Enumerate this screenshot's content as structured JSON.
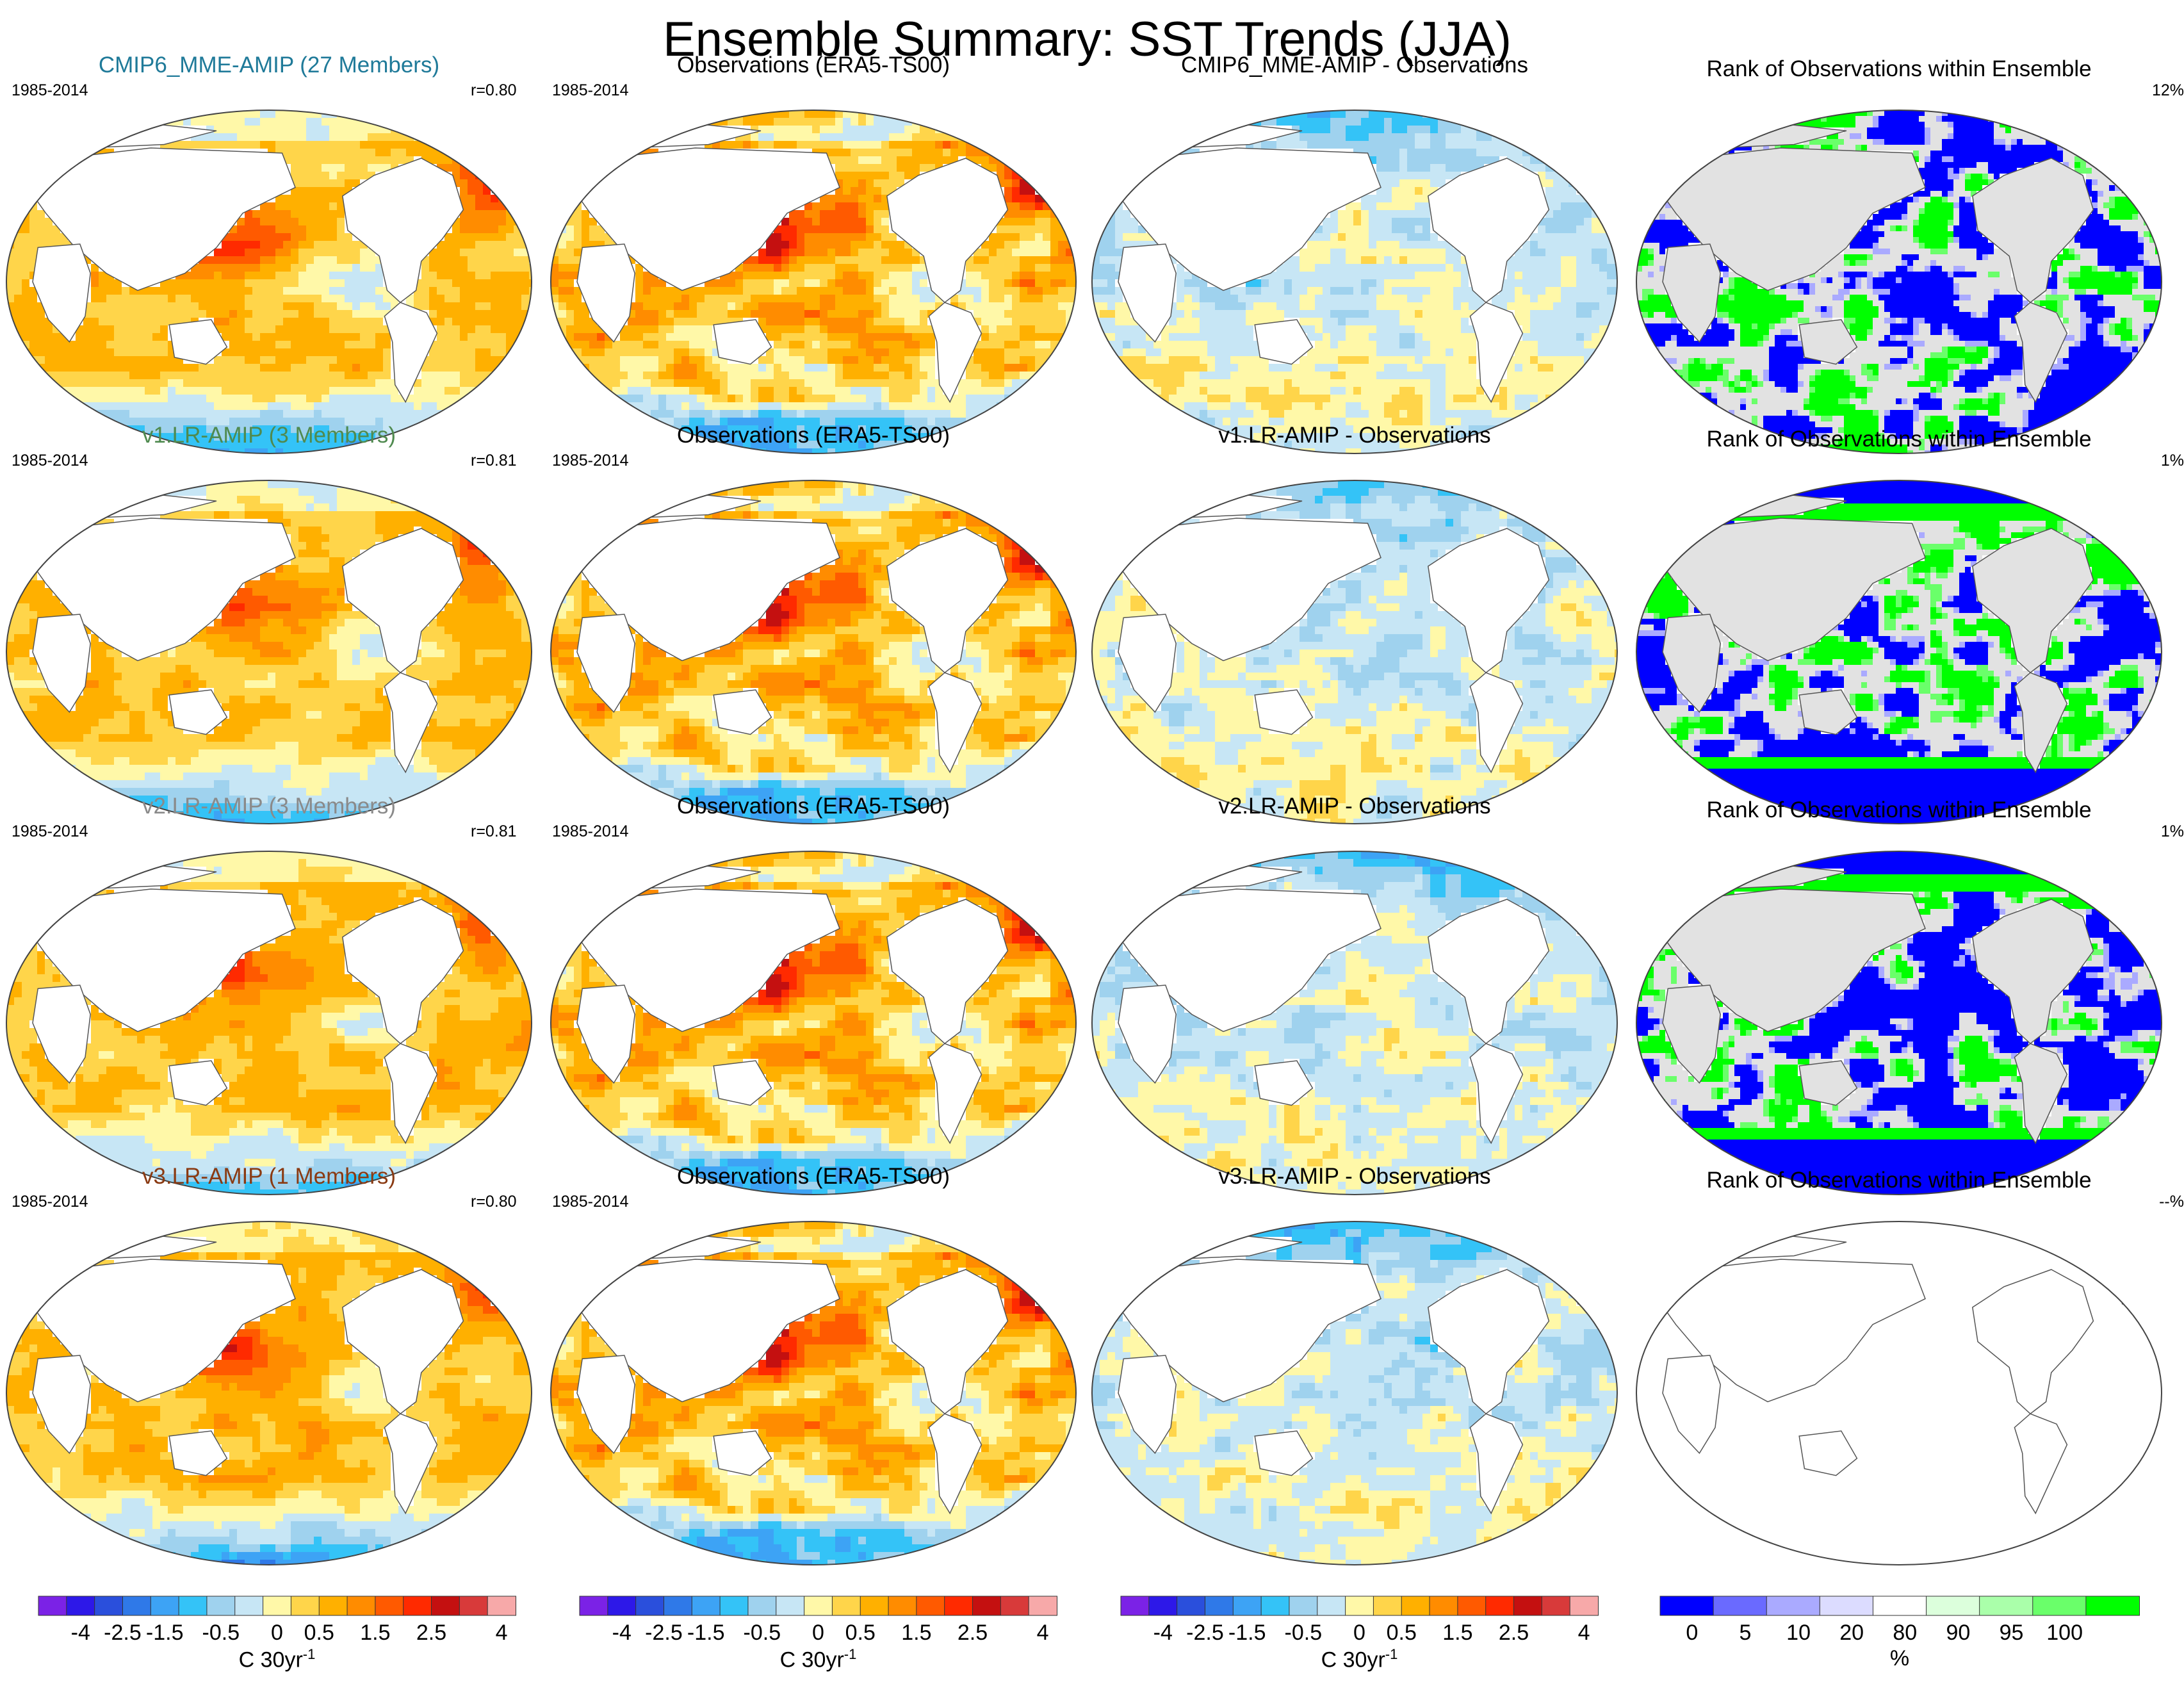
{
  "title": "Ensemble Summary: SST Trends (JJA)",
  "period": "1985-2014",
  "obs_title": "Observations (ERA5-TS00)",
  "rank_title": "Rank of Observations within Ensemble",
  "rows": [
    {
      "model_title": "CMIP6_MME-AMIP (27 Members)",
      "model_color": "#1f7a99",
      "corr": "r=0.80",
      "diff_title": "CMIP6_MME-AMIP - Observations",
      "rank_pct": "12%",
      "rank_available": true
    },
    {
      "model_title": "v1.LR-AMIP (3 Members)",
      "model_color": "#4f8a4f",
      "corr": "r=0.81",
      "diff_title": "v1.LR-AMIP - Observations",
      "rank_pct": "1%",
      "rank_available": true
    },
    {
      "model_title": "v2.LR-AMIP (3 Members)",
      "model_color": "#8a8a8a",
      "corr": "r=0.81",
      "diff_title": "v2.LR-AMIP - Observations",
      "rank_pct": "1%",
      "rank_available": true
    },
    {
      "model_title": "v3.LR-AMIP (1 Members)",
      "model_color": "#8a3a12",
      "corr": "r=0.80",
      "diff_title": "v3.LR-AMIP - Observations",
      "rank_pct": "--%",
      "rank_available": false
    }
  ],
  "colorbars": {
    "trend": {
      "colors": [
        "#7b22e6",
        "#2d18e8",
        "#2a4fdc",
        "#2f79e8",
        "#3da3f5",
        "#34c3f7",
        "#9fd2ee",
        "#c7e6f5",
        "#fff8a8",
        "#ffd54a",
        "#ffb000",
        "#ff8c00",
        "#ff5a00",
        "#ff2a00",
        "#c41010",
        "#d83a3a",
        "#f7a9a9"
      ],
      "ticks": [
        "-4",
        "-2.5",
        "-1.5",
        "-0.5",
        "0",
        "0.5",
        "1.5",
        "2.5",
        "4"
      ],
      "unit": "C 30yr",
      "unit_exp": "-1"
    },
    "rank": {
      "colors": [
        "#0000ff",
        "#6a6aff",
        "#aaaaff",
        "#dcdcff",
        "#ffffff",
        "#dcffdc",
        "#aaffaa",
        "#6aff6a",
        "#00ff00"
      ],
      "ticks": [
        "0",
        "5",
        "10",
        "20",
        "80",
        "90",
        "95",
        "100"
      ],
      "unit": "%"
    }
  },
  "chart_data": [
    {
      "type": "map-panels",
      "title": "Ensemble Summary: SST Trends (JJA)",
      "layout": "4 rows x 4 columns (model trend, observations trend, model minus observations, rank of observations)",
      "period": "1985-2014",
      "trend_levels": [
        -4,
        -3.5,
        -3,
        -2.5,
        -2,
        -1.5,
        -1,
        -0.5,
        0,
        0.5,
        1,
        1.5,
        2,
        2.5,
        3,
        3.5,
        4
      ],
      "trend_units": "C 30yr-1",
      "rank_levels": [
        0,
        5,
        10,
        20,
        80,
        90,
        95,
        100
      ],
      "rank_units": "%",
      "rows": [
        {
          "model": "CMIP6_MME-AMIP",
          "members": 27,
          "pattern_correlation": 0.8,
          "rank_pct_outside": 12
        },
        {
          "model": "v1.LR-AMIP",
          "members": 3,
          "pattern_correlation": 0.81,
          "rank_pct_outside": 1
        },
        {
          "model": "v2.LR-AMIP",
          "members": 3,
          "pattern_correlation": 0.81,
          "rank_pct_outside": 1
        },
        {
          "model": "v3.LR-AMIP",
          "members": 1,
          "pattern_correlation": 0.8,
          "rank_pct_outside": null
        }
      ]
    }
  ]
}
